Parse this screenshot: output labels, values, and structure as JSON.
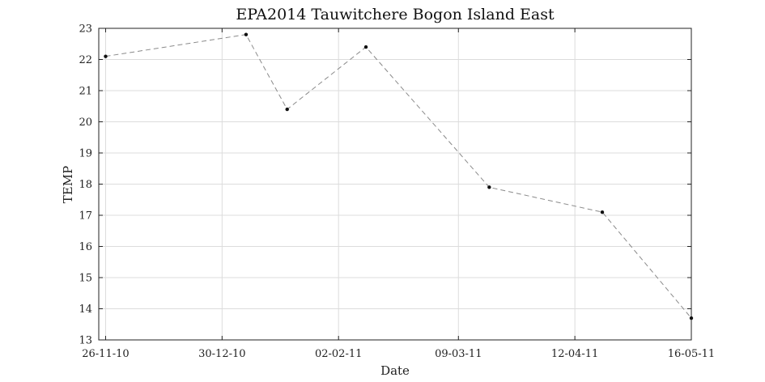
{
  "chart_data": {
    "type": "line",
    "title": "EPA2014 Tauwitchere Bogon Island East",
    "xlabel": "Date",
    "ylabel": "TEMP",
    "ylim": [
      13,
      23
    ],
    "xlim": [
      "2010-11-24",
      "2011-05-16"
    ],
    "grid": true,
    "y_ticks": [
      13,
      14,
      15,
      16,
      17,
      18,
      19,
      20,
      21,
      22,
      23
    ],
    "x_ticks": [
      {
        "date": "2010-11-26",
        "label": "26-11-10"
      },
      {
        "date": "2010-12-30",
        "label": "30-12-10"
      },
      {
        "date": "2011-02-02",
        "label": "02-02-11"
      },
      {
        "date": "2011-03-09",
        "label": "09-03-11"
      },
      {
        "date": "2011-04-12",
        "label": "12-04-11"
      },
      {
        "date": "2011-05-16",
        "label": "16-05-11"
      }
    ],
    "series": [
      {
        "x": [
          "2010-11-26",
          "2011-01-06",
          "2011-01-18",
          "2011-02-10",
          "2011-03-18",
          "2011-04-20",
          "2011-05-16"
        ],
        "y": [
          22.1,
          22.8,
          20.4,
          22.4,
          17.9,
          17.1,
          13.7
        ]
      }
    ],
    "colors": {
      "line": "#8a8a8a",
      "marker": "#111111",
      "grid": "#dcdcdc"
    }
  }
}
